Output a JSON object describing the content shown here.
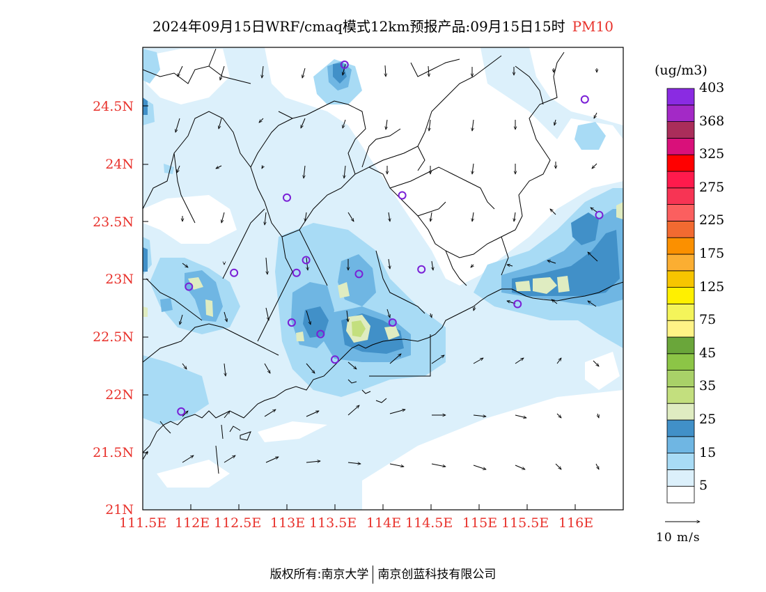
{
  "title": {
    "text": "2024年09月15日WRF/cmaq模式12km预报产品:09月15日15时",
    "pollutant": "PM10"
  },
  "map": {
    "lon_range": [
      111.5,
      116.5
    ],
    "lat_range": [
      21.0,
      25.0
    ],
    "lat_labels": [
      "24.5N",
      "24N",
      "23.5N",
      "23N",
      "22.5N",
      "22N",
      "21.5N",
      "21N"
    ],
    "lon_labels": [
      "111.5E",
      "112E",
      "112.5E",
      "113E",
      "113.5E",
      "114E",
      "114.5E",
      "115E",
      "115.5E",
      "116E"
    ],
    "station_markers": [
      [
        113.6,
        24.85
      ],
      [
        116.1,
        24.55
      ],
      [
        113.0,
        23.7
      ],
      [
        114.2,
        23.72
      ],
      [
        116.25,
        23.55
      ],
      [
        112.45,
        23.05
      ],
      [
        113.1,
        23.05
      ],
      [
        113.2,
        23.16
      ],
      [
        113.75,
        23.04
      ],
      [
        114.4,
        23.08
      ],
      [
        111.98,
        22.93
      ],
      [
        113.05,
        22.62
      ],
      [
        113.35,
        22.52
      ],
      [
        114.1,
        22.62
      ],
      [
        113.5,
        22.3
      ],
      [
        111.9,
        21.85
      ],
      [
        115.4,
        22.78
      ]
    ]
  },
  "colorbar": {
    "unit": "(ug/m3)",
    "colors": [
      "#ffffff",
      "#dcf0fb",
      "#a8dbf5",
      "#6fb6e3",
      "#4190c8",
      "#dfecc1",
      "#c3df7e",
      "#a9d168",
      "#8cc546",
      "#6aa63a",
      "#fff386",
      "#f4f45a",
      "#fff000",
      "#f7c500",
      "#fbae32",
      "#fb9000",
      "#f26a31",
      "#fb5f5f",
      "#f73454",
      "#ff1a4c",
      "#ff0000",
      "#d9107a",
      "#aa2d5a",
      "#a329c6",
      "#8a2be2"
    ],
    "labels": [
      "5",
      "15",
      "25",
      "35",
      "45",
      "75",
      "125",
      "175",
      "225",
      "275",
      "325",
      "368",
      "403"
    ]
  },
  "wind_reference": "10 m/s",
  "footer": {
    "left": "版权所有:南京大学",
    "right": "南京创蓝科技有限公司"
  }
}
